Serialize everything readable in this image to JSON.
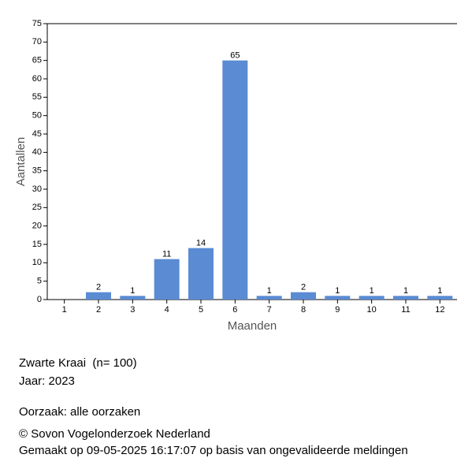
{
  "chart_data": {
    "type": "bar",
    "x_label": "Maanden",
    "y_label": "Aantallen",
    "categories": [
      "1",
      "2",
      "3",
      "4",
      "5",
      "6",
      "7",
      "8",
      "9",
      "10",
      "11",
      "12"
    ],
    "values": [
      null,
      2,
      1,
      11,
      14,
      65,
      1,
      2,
      1,
      1,
      1,
      1
    ],
    "color": "#5a8bd3",
    "ylim": [
      0,
      75
    ],
    "yticks": [
      0,
      5,
      10,
      15,
      20,
      25,
      30,
      35,
      40,
      45,
      50,
      55,
      60,
      65,
      70,
      75
    ]
  },
  "info": {
    "species": "Zwarte Kraai  (n= 100)",
    "year": "Jaar: 2023",
    "cause": "Oorzaak: alle oorzaken",
    "copyright": "© Sovon Vogelonderzoek Nederland",
    "made": "Gemaakt op 09-05-2025 16:17:07 op basis van ongevalideerde meldingen"
  }
}
